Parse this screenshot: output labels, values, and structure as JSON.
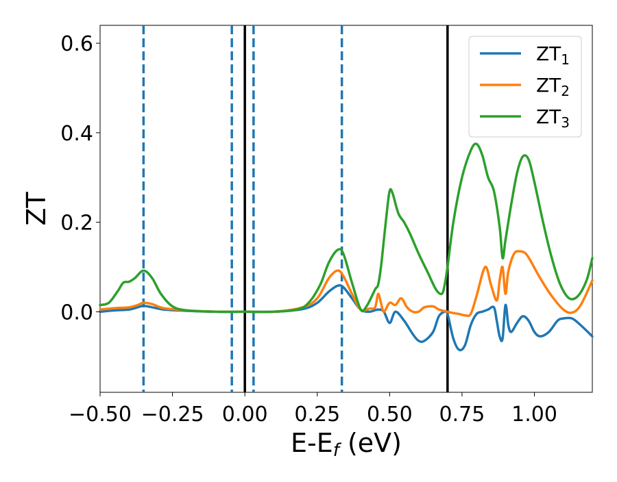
{
  "chart_data": {
    "type": "line",
    "xlabel_main": "E-E",
    "xlabel_sub": "f",
    "xlabel_unit": " (eV)",
    "ylabel": "ZT",
    "xlim": [
      -0.5,
      1.2
    ],
    "ylim": [
      -0.18,
      0.64
    ],
    "x_ticks": [
      -0.5,
      -0.25,
      0.0,
      0.25,
      0.5,
      0.75,
      1.0
    ],
    "x_tick_labels": [
      "−0.50",
      "−0.25",
      "0.00",
      "0.25",
      "0.50",
      "0.75",
      "1.00"
    ],
    "y_ticks": [
      0.0,
      0.2,
      0.4,
      0.6
    ],
    "y_tick_labels": [
      "0.0",
      "0.2",
      "0.4",
      "0.6"
    ],
    "grid": false,
    "legend_position": "top-right",
    "vertical_lines": [
      {
        "x": -0.35,
        "style": "dashed",
        "color": "#1f77b4"
      },
      {
        "x": -0.045,
        "style": "dashed",
        "color": "#1f77b4"
      },
      {
        "x": 0.03,
        "style": "dashed",
        "color": "#1f77b4"
      },
      {
        "x": 0.335,
        "style": "dashed",
        "color": "#1f77b4"
      },
      {
        "x": 0.0,
        "style": "solid",
        "color": "#000000"
      },
      {
        "x": 0.7,
        "style": "solid",
        "color": "#000000"
      }
    ],
    "series": [
      {
        "name": "ZT",
        "sub": "1",
        "color": "#1f77b4",
        "x": [
          -0.5,
          -0.45,
          -0.4,
          -0.37,
          -0.35,
          -0.32,
          -0.28,
          -0.2,
          -0.1,
          0.0,
          0.1,
          0.2,
          0.25,
          0.29,
          0.32,
          0.34,
          0.37,
          0.4,
          0.43,
          0.46,
          0.48,
          0.5,
          0.52,
          0.55,
          0.58,
          0.6,
          0.62,
          0.65,
          0.67,
          0.69,
          0.7,
          0.72,
          0.74,
          0.76,
          0.78,
          0.8,
          0.82,
          0.84,
          0.86,
          0.87,
          0.88,
          0.89,
          0.9,
          0.91,
          0.92,
          0.94,
          0.96,
          0.98,
          1.0,
          1.02,
          1.05,
          1.08,
          1.1,
          1.13,
          1.16,
          1.2
        ],
        "y": [
          0.0,
          0.003,
          0.005,
          0.01,
          0.013,
          0.01,
          0.005,
          0.002,
          0.0,
          0.0,
          0.0,
          0.006,
          0.02,
          0.045,
          0.058,
          0.055,
          0.03,
          0.005,
          0.0,
          0.005,
          0.0,
          -0.025,
          0.0,
          -0.02,
          -0.05,
          -0.065,
          -0.065,
          -0.045,
          -0.01,
          0.0,
          -0.005,
          -0.06,
          -0.085,
          -0.075,
          -0.03,
          -0.005,
          0.0,
          0.005,
          0.01,
          -0.02,
          -0.055,
          -0.06,
          0.015,
          -0.03,
          -0.045,
          -0.025,
          -0.01,
          -0.02,
          -0.045,
          -0.055,
          -0.045,
          -0.02,
          -0.015,
          -0.015,
          -0.03,
          -0.055
        ]
      },
      {
        "name": "ZT",
        "sub": "2",
        "color": "#ff7f0e",
        "x": [
          -0.5,
          -0.45,
          -0.4,
          -0.37,
          -0.35,
          -0.32,
          -0.28,
          -0.2,
          -0.1,
          0.0,
          0.1,
          0.2,
          0.25,
          0.29,
          0.32,
          0.34,
          0.37,
          0.4,
          0.43,
          0.45,
          0.46,
          0.47,
          0.48,
          0.5,
          0.52,
          0.54,
          0.56,
          0.58,
          0.6,
          0.62,
          0.65,
          0.67,
          0.7,
          0.72,
          0.74,
          0.76,
          0.78,
          0.8,
          0.83,
          0.85,
          0.87,
          0.88,
          0.89,
          0.9,
          0.91,
          0.93,
          0.95,
          0.97,
          0.99,
          1.02,
          1.06,
          1.1,
          1.13,
          1.16,
          1.2
        ],
        "y": [
          0.005,
          0.008,
          0.01,
          0.015,
          0.02,
          0.017,
          0.008,
          0.003,
          0.0,
          0.0,
          0.0,
          0.01,
          0.03,
          0.075,
          0.092,
          0.08,
          0.04,
          0.005,
          0.007,
          0.01,
          0.04,
          0.02,
          0.0,
          0.02,
          0.015,
          0.03,
          0.01,
          0.0,
          0.0,
          0.01,
          0.012,
          0.005,
          0.0,
          -0.003,
          -0.005,
          -0.008,
          -0.005,
          0.035,
          0.1,
          0.06,
          0.025,
          0.07,
          0.1,
          0.04,
          0.09,
          0.13,
          0.135,
          0.13,
          0.11,
          0.075,
          0.035,
          0.005,
          -0.002,
          0.015,
          0.07
        ]
      },
      {
        "name": "ZT",
        "sub": "3",
        "color": "#2ca02c",
        "x": [
          -0.5,
          -0.47,
          -0.44,
          -0.42,
          -0.4,
          -0.38,
          -0.35,
          -0.32,
          -0.29,
          -0.25,
          -0.2,
          -0.1,
          0.0,
          0.1,
          0.18,
          0.22,
          0.26,
          0.29,
          0.32,
          0.34,
          0.37,
          0.4,
          0.42,
          0.45,
          0.46,
          0.47,
          0.48,
          0.49,
          0.5,
          0.51,
          0.53,
          0.55,
          0.57,
          0.6,
          0.63,
          0.66,
          0.68,
          0.69,
          0.7,
          0.72,
          0.75,
          0.78,
          0.8,
          0.82,
          0.84,
          0.86,
          0.88,
          0.89,
          0.9,
          0.92,
          0.94,
          0.96,
          0.98,
          1.0,
          1.03,
          1.06,
          1.09,
          1.12,
          1.15,
          1.18,
          1.2
        ],
        "y": [
          0.015,
          0.02,
          0.045,
          0.065,
          0.067,
          0.075,
          0.092,
          0.075,
          0.04,
          0.012,
          0.003,
          0.0,
          0.0,
          0.0,
          0.005,
          0.02,
          0.06,
          0.11,
          0.138,
          0.13,
          0.065,
          0.005,
          0.012,
          0.05,
          0.06,
          0.1,
          0.16,
          0.22,
          0.27,
          0.265,
          0.22,
          0.2,
          0.175,
          0.13,
          0.09,
          0.05,
          0.04,
          0.06,
          0.1,
          0.2,
          0.3,
          0.36,
          0.375,
          0.35,
          0.3,
          0.27,
          0.19,
          0.12,
          0.16,
          0.24,
          0.31,
          0.347,
          0.34,
          0.29,
          0.2,
          0.12,
          0.06,
          0.03,
          0.035,
          0.07,
          0.12
        ]
      }
    ]
  }
}
